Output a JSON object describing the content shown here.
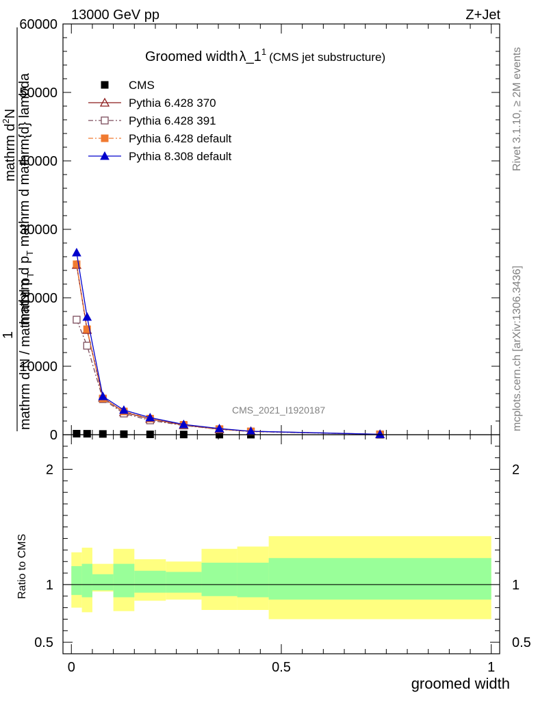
{
  "header": {
    "left_label": "13000 GeV pp",
    "right_label": "Z+Jet"
  },
  "side_labels": {
    "rivet": "Rivet 3.1.10, ≥ 2M events",
    "mcplots": "mcplots.cern.ch [arXiv:1306.3436]"
  },
  "chart_data": [
    {
      "type": "line",
      "panel": "main",
      "title_main": "Groomed width",
      "title_symbol": "λ_1",
      "title_sup": "1",
      "title_sub": "(CMS jet substructure)",
      "ylabel_numerator_top": "mathrm d",
      "ylabel_numerator_sup": "2",
      "ylabel_numerator_rest": "N",
      "ylabel_denominator": "mathrm d p",
      "ylabel_denominator_sub": "T",
      "ylabel_denominator_rest": " mathrm d mathrm{d} lambda",
      "ylabel_prefix": "1",
      "ylabel_prefix_frac": "mathrm d N / mathrm d p",
      "ylabel_prefix_sub": "T",
      "watermark": "CMS_2021_I1920187",
      "xlim": [
        -0.02,
        1.02
      ],
      "ylim": [
        0,
        60000
      ],
      "y_ticks": [
        0,
        10000,
        20000,
        30000,
        40000,
        50000,
        60000
      ],
      "y_tick_labels": [
        "0",
        "10000",
        "20000",
        "30000",
        "40000",
        "50000",
        "60000"
      ],
      "legend_position": "top-left",
      "series": [
        {
          "name": "CMS",
          "color": "#000000",
          "marker": "square-filled",
          "dash": "none",
          "x": [
            0.0125,
            0.0375,
            0.075,
            0.125,
            0.1875,
            0.2675,
            0.3525,
            0.4275,
            0.735
          ],
          "y": [
            150,
            140,
            110,
            80,
            50,
            30,
            15,
            8,
            2
          ]
        },
        {
          "name": "Pythia 6.428 370",
          "color": "#8b1a1a",
          "marker": "triangle-open",
          "dash": "solid",
          "x": [
            0.0125,
            0.0375,
            0.075,
            0.125,
            0.1875,
            0.2675,
            0.3525,
            0.4275,
            0.735
          ],
          "y": [
            24800,
            15300,
            5400,
            3300,
            2300,
            1400,
            800,
            500,
            50
          ]
        },
        {
          "name": "Pythia 6.428 391",
          "color": "#7a4a5a",
          "marker": "square-open",
          "dash": "dashdot",
          "x": [
            0.0125,
            0.0375,
            0.075,
            0.125,
            0.1875,
            0.2675,
            0.3525,
            0.4275,
            0.735
          ],
          "y": [
            16800,
            13000,
            5200,
            3100,
            2100,
            1350,
            780,
            460,
            45
          ]
        },
        {
          "name": "Pythia 6.428 default",
          "color": "#f07a30",
          "marker": "square-filled",
          "dash": "dashdot",
          "x": [
            0.0125,
            0.0375,
            0.075,
            0.125,
            0.1875,
            0.2675,
            0.3525,
            0.4275,
            0.735
          ],
          "y": [
            24900,
            15400,
            5300,
            3400,
            2350,
            1450,
            820,
            480,
            50
          ]
        },
        {
          "name": "Pythia 8.308 default",
          "color": "#0000cc",
          "marker": "triangle-filled",
          "dash": "solid",
          "x": [
            0.0125,
            0.0375,
            0.075,
            0.125,
            0.1875,
            0.2675,
            0.3525,
            0.4275,
            0.735
          ],
          "y": [
            26600,
            17200,
            5600,
            3600,
            2500,
            1500,
            900,
            500,
            60
          ]
        }
      ]
    },
    {
      "type": "area",
      "panel": "ratio",
      "ylabel": "Ratio to CMS",
      "xlabel": "groomed width",
      "xlim": [
        -0.02,
        1.02
      ],
      "ylim": [
        0.4,
        2.3
      ],
      "y_ticks": [
        0.5,
        1,
        2
      ],
      "y_tick_labels": [
        "0.5",
        "1",
        "2"
      ],
      "x_ticks": [
        0,
        0.5,
        1
      ],
      "x_tick_labels": [
        "0",
        "0.5",
        "1"
      ],
      "reference_line": 1,
      "bins": [
        {
          "x0": 0.0,
          "x1": 0.025,
          "outer": [
            0.8,
            1.28
          ],
          "inner": [
            0.91,
            1.16
          ]
        },
        {
          "x0": 0.025,
          "x1": 0.05,
          "outer": [
            0.76,
            1.32
          ],
          "inner": [
            0.89,
            1.18
          ]
        },
        {
          "x0": 0.05,
          "x1": 0.1,
          "outer": [
            0.94,
            1.18
          ],
          "inner": [
            0.95,
            1.09
          ]
        },
        {
          "x0": 0.1,
          "x1": 0.15,
          "outer": [
            0.77,
            1.31
          ],
          "inner": [
            0.89,
            1.18
          ]
        },
        {
          "x0": 0.15,
          "x1": 0.225,
          "outer": [
            0.86,
            1.22
          ],
          "inner": [
            0.93,
            1.12
          ]
        },
        {
          "x0": 0.225,
          "x1": 0.31,
          "outer": [
            0.87,
            1.2
          ],
          "inner": [
            0.93,
            1.11
          ]
        },
        {
          "x0": 0.31,
          "x1": 0.395,
          "outer": [
            0.78,
            1.31
          ],
          "inner": [
            0.9,
            1.19
          ]
        },
        {
          "x0": 0.395,
          "x1": 0.47,
          "outer": [
            0.78,
            1.33
          ],
          "inner": [
            0.89,
            1.19
          ]
        },
        {
          "x0": 0.47,
          "x1": 1.0,
          "outer": [
            0.7,
            1.42
          ],
          "inner": [
            0.87,
            1.23
          ]
        }
      ],
      "colors": {
        "outer": "#ffff80",
        "inner": "#99ff99"
      }
    }
  ]
}
